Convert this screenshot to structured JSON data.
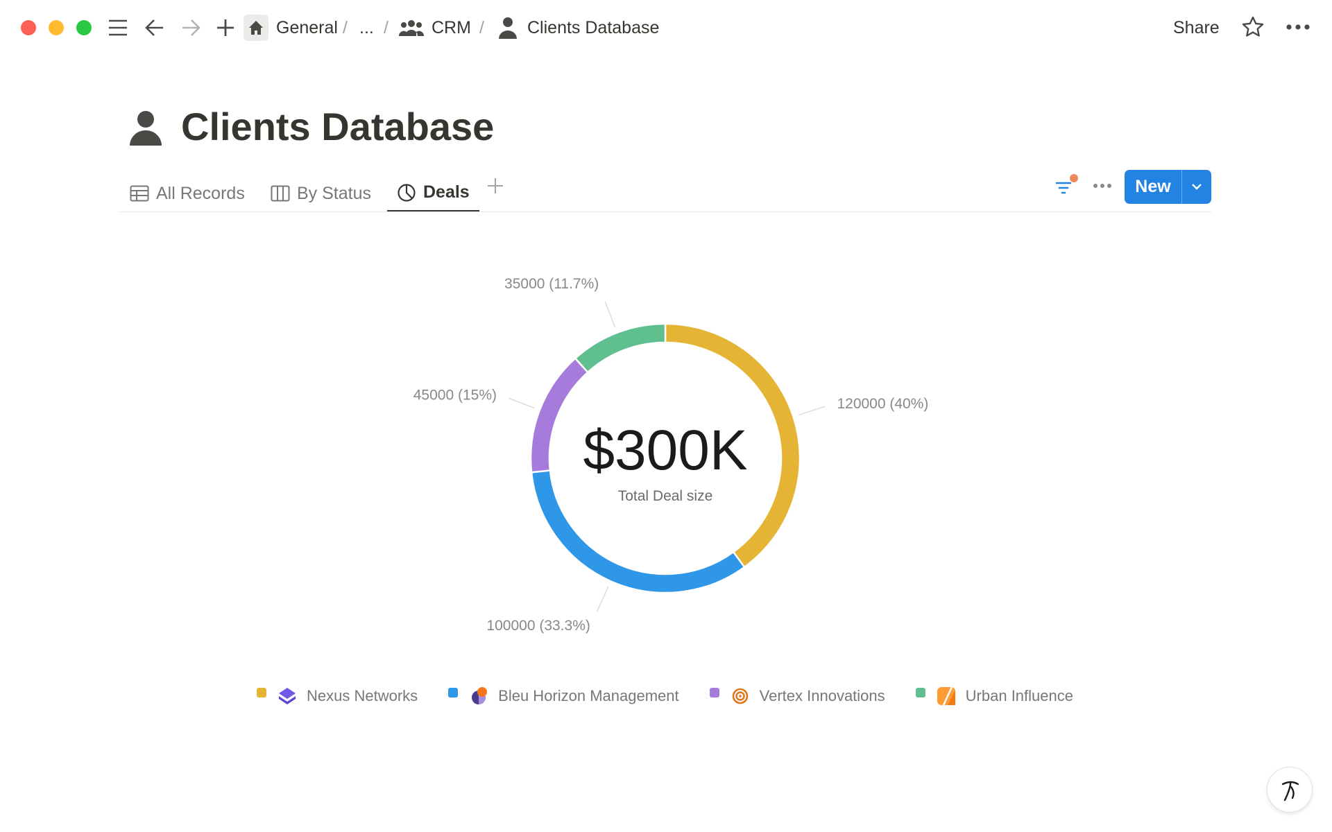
{
  "breadcrumb": {
    "items": [
      "General",
      "...",
      "CRM",
      "Clients Database"
    ]
  },
  "topbar": {
    "share": "Share"
  },
  "page": {
    "title": "Clients Database"
  },
  "tabs": [
    {
      "label": "All Records",
      "icon": "table-icon"
    },
    {
      "label": "By Status",
      "icon": "board-icon"
    },
    {
      "label": "Deals",
      "icon": "chart-pie-icon",
      "active": true
    }
  ],
  "toolbar": {
    "new_label": "New"
  },
  "chart_data": {
    "type": "pie",
    "variant": "donut",
    "center_value": "$300K",
    "center_label": "Total Deal size",
    "categories": [
      "Nexus Networks",
      "Bleu Horizon Management",
      "Vertex Innovations",
      "Urban Influence"
    ],
    "values": [
      120000,
      100000,
      45000,
      35000
    ],
    "labels": [
      "120000 (40%)",
      "100000 (33.3%)",
      "45000 (15%)",
      "35000 (11.7%)"
    ],
    "colors": [
      "#e6b434",
      "#2f97e8",
      "#a77bdc",
      "#5fbf8f"
    ],
    "legend": "bottom"
  }
}
